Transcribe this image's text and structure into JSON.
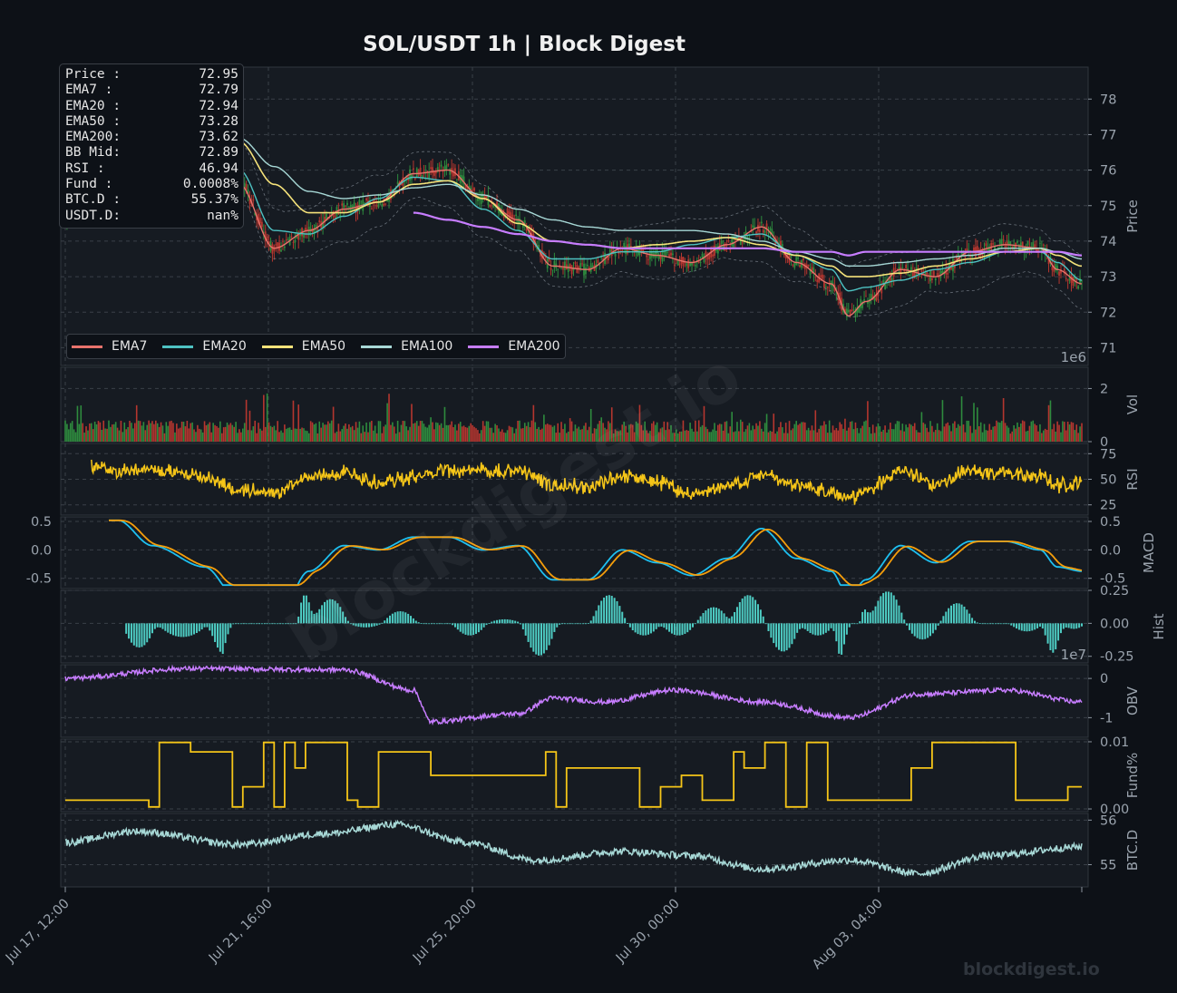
{
  "title": "SOL/USDT  1h  |  Block Digest",
  "watermark": "blockdigest.io",
  "footer_watermark": "blockdigest.io",
  "info_box": [
    {
      "label": "Price :",
      "value": "72.95"
    },
    {
      "label": "EMA7  :",
      "value": "72.79"
    },
    {
      "label": "EMA20 :",
      "value": "72.94"
    },
    {
      "label": "EMA50 :",
      "value": "73.28"
    },
    {
      "label": "EMA200:",
      "value": "73.62"
    },
    {
      "label": "BB Mid:",
      "value": "72.89"
    },
    {
      "label": "RSI   :",
      "value": "46.94"
    },
    {
      "label": "Fund  :",
      "value": "0.0008%"
    },
    {
      "label": "BTC.D :",
      "value": "55.37%"
    },
    {
      "label": "USDT.D:",
      "value": "nan%"
    }
  ],
  "legend": [
    {
      "name": "EMA7",
      "color": "#e8736c"
    },
    {
      "name": "EMA20",
      "color": "#4ec2c2"
    },
    {
      "name": "EMA50",
      "color": "#f5e27a"
    },
    {
      "name": "EMA100",
      "color": "#a7d8d6"
    },
    {
      "name": "EMA200",
      "color": "#c77dff"
    }
  ],
  "colors": {
    "background": "#0d1117",
    "panel": "#161b22",
    "up": "#2e8b3e",
    "down": "#b5362f",
    "rsi": "#f5c518",
    "macd": "#1ec0f0",
    "signal": "#f59e0b",
    "hist": "#4ecdc4",
    "obv": "#c77dff",
    "funding": "#f5c518",
    "btcd": "#a7d8d6"
  },
  "chart_data": {
    "type": "line",
    "x_ticks": [
      "Jul 17, 12:00",
      "Jul 21, 16:00",
      "Jul 25, 20:00",
      "Jul 30, 00:00",
      "Aug 03, 04:00"
    ],
    "panels": [
      {
        "id": "price",
        "ylabel": "Price",
        "ylim": [
          70.5,
          78.9
        ],
        "yticks": [
          "71",
          "72",
          "73",
          "74",
          "75",
          "76",
          "77",
          "78"
        ],
        "offset_label": "1e6",
        "series": [
          {
            "name": "EMA7",
            "points": [
              [
                0,
                74.5
              ],
              [
                20,
                77.7
              ],
              [
                60,
                78.2
              ],
              [
                100,
                77.8
              ],
              [
                160,
                77.1
              ],
              [
                200,
                75.6
              ],
              [
                240,
                73.8
              ],
              [
                280,
                74.3
              ],
              [
                320,
                74.9
              ],
              [
                360,
                75.1
              ],
              [
                400,
                75.9
              ],
              [
                440,
                76.0
              ],
              [
                480,
                75.2
              ],
              [
                520,
                74.6
              ],
              [
                560,
                73.3
              ],
              [
                600,
                73.2
              ],
              [
                640,
                73.8
              ],
              [
                680,
                73.6
              ],
              [
                720,
                73.4
              ],
              [
                760,
                73.9
              ],
              [
                800,
                74.4
              ],
              [
                840,
                73.4
              ],
              [
                880,
                72.8
              ],
              [
                900,
                71.9
              ],
              [
                920,
                72.3
              ],
              [
                960,
                73.2
              ],
              [
                1000,
                73.0
              ],
              [
                1040,
                73.7
              ],
              [
                1080,
                73.9
              ],
              [
                1120,
                73.8
              ],
              [
                1140,
                73.2
              ],
              [
                1168,
                72.8
              ]
            ]
          },
          {
            "name": "EMA20",
            "points": [
              [
                0,
                74.4
              ],
              [
                20,
                77.2
              ],
              [
                60,
                77.9
              ],
              [
                100,
                77.5
              ],
              [
                160,
                77.0
              ],
              [
                200,
                76.0
              ],
              [
                240,
                74.3
              ],
              [
                280,
                74.2
              ],
              [
                320,
                74.7
              ],
              [
                360,
                75.2
              ],
              [
                400,
                75.8
              ],
              [
                440,
                75.7
              ],
              [
                480,
                74.9
              ],
              [
                520,
                74.3
              ],
              [
                560,
                73.5
              ],
              [
                600,
                73.5
              ],
              [
                640,
                73.7
              ],
              [
                680,
                73.7
              ],
              [
                720,
                73.9
              ],
              [
                760,
                74.1
              ],
              [
                800,
                74.2
              ],
              [
                840,
                73.6
              ],
              [
                880,
                73.2
              ],
              [
                900,
                72.6
              ],
              [
                920,
                72.7
              ],
              [
                960,
                72.9
              ],
              [
                1000,
                73.2
              ],
              [
                1040,
                73.4
              ],
              [
                1080,
                73.7
              ],
              [
                1120,
                73.7
              ],
              [
                1140,
                73.4
              ],
              [
                1168,
                72.9
              ]
            ]
          },
          {
            "name": "EMA50",
            "points": [
              [
                0,
                75.8
              ],
              [
                20,
                76.8
              ],
              [
                60,
                77.5
              ],
              [
                100,
                77.7
              ],
              [
                160,
                77.5
              ],
              [
                200,
                76.8
              ],
              [
                240,
                75.6
              ],
              [
                280,
                74.8
              ],
              [
                320,
                74.8
              ],
              [
                360,
                75.1
              ],
              [
                400,
                75.6
              ],
              [
                440,
                75.7
              ],
              [
                480,
                75.2
              ],
              [
                520,
                74.5
              ],
              [
                560,
                74.0
              ],
              [
                600,
                73.9
              ],
              [
                640,
                73.8
              ],
              [
                680,
                73.9
              ],
              [
                720,
                74.0
              ],
              [
                760,
                74.1
              ],
              [
                800,
                73.9
              ],
              [
                840,
                73.6
              ],
              [
                880,
                73.3
              ],
              [
                900,
                73.0
              ],
              [
                920,
                73.0
              ],
              [
                960,
                73.1
              ],
              [
                1000,
                73.3
              ],
              [
                1040,
                73.5
              ],
              [
                1080,
                73.7
              ],
              [
                1120,
                73.8
              ],
              [
                1140,
                73.6
              ],
              [
                1168,
                73.3
              ]
            ]
          },
          {
            "name": "EMA100",
            "points": [
              [
                0,
                76.0
              ],
              [
                20,
                76.5
              ],
              [
                60,
                77.1
              ],
              [
                100,
                77.2
              ],
              [
                160,
                77.2
              ],
              [
                200,
                76.9
              ],
              [
                240,
                76.1
              ],
              [
                280,
                75.4
              ],
              [
                320,
                75.2
              ],
              [
                360,
                75.3
              ],
              [
                400,
                75.5
              ],
              [
                440,
                75.6
              ],
              [
                480,
                75.3
              ],
              [
                520,
                74.9
              ],
              [
                560,
                74.6
              ],
              [
                600,
                74.4
              ],
              [
                640,
                74.3
              ],
              [
                680,
                74.3
              ],
              [
                720,
                74.3
              ],
              [
                760,
                74.2
              ],
              [
                800,
                74.0
              ],
              [
                840,
                73.7
              ],
              [
                880,
                73.5
              ],
              [
                900,
                73.3
              ],
              [
                920,
                73.3
              ],
              [
                960,
                73.4
              ],
              [
                1000,
                73.5
              ],
              [
                1040,
                73.6
              ],
              [
                1080,
                73.8
              ],
              [
                1120,
                73.8
              ],
              [
                1140,
                73.7
              ],
              [
                1168,
                73.5
              ]
            ]
          },
          {
            "name": "EMA200",
            "points": [
              [
                0,
                75.7
              ],
              [
                20,
                75.7
              ],
              [
                60,
                75.6
              ],
              [
                100,
                75.6
              ],
              [
                160,
                75.7
              ],
              [
                200,
                75.5
              ],
              [
                240,
                75.3
              ],
              [
                280,
                75.2
              ],
              [
                320,
                75.0
              ],
              [
                360,
                74.9
              ],
              [
                400,
                74.8
              ],
              [
                440,
                74.6
              ],
              [
                480,
                74.4
              ],
              [
                520,
                74.2
              ],
              [
                560,
                74.0
              ],
              [
                600,
                73.9
              ],
              [
                640,
                73.8
              ],
              [
                680,
                73.8
              ],
              [
                720,
                73.8
              ],
              [
                760,
                73.8
              ],
              [
                800,
                73.8
              ],
              [
                840,
                73.7
              ],
              [
                880,
                73.7
              ],
              [
                900,
                73.6
              ],
              [
                920,
                73.7
              ],
              [
                960,
                73.7
              ],
              [
                1000,
                73.7
              ],
              [
                1040,
                73.7
              ],
              [
                1080,
                73.7
              ],
              [
                1120,
                73.7
              ],
              [
                1140,
                73.7
              ],
              [
                1168,
                73.6
              ]
            ]
          }
        ]
      },
      {
        "id": "vol",
        "ylabel": "Vol",
        "ylim": [
          0,
          2.8
        ],
        "yticks": [
          "0",
          "2"
        ]
      },
      {
        "id": "rsi",
        "ylabel": "RSI",
        "ylim": [
          15,
          85
        ],
        "yticks": [
          "25",
          "50",
          "75"
        ]
      },
      {
        "id": "macd",
        "ylabel": "MACD",
        "ylim": [
          -0.68,
          0.58
        ],
        "yticks": [
          "0.5",
          "0.0",
          "-0.5"
        ]
      },
      {
        "id": "hist",
        "ylabel": "Hist",
        "ylim": [
          -0.3,
          0.25
        ],
        "yticks": [
          "0.25",
          "0.00",
          "-0.25"
        ],
        "offset_label": "1e7"
      },
      {
        "id": "obv",
        "ylabel": "OBV",
        "ylim": [
          -1.5,
          0.35
        ],
        "yticks": [
          "0",
          "-1"
        ]
      },
      {
        "id": "fund",
        "ylabel": "Fund%",
        "ylim": [
          -0.0004,
          0.0104
        ],
        "yticks": [
          "0.01",
          "0.00"
        ]
      },
      {
        "id": "btcd",
        "ylabel": "BTC.D",
        "ylim": [
          54.5,
          56.15
        ],
        "yticks": [
          "56",
          "55"
        ]
      }
    ]
  }
}
